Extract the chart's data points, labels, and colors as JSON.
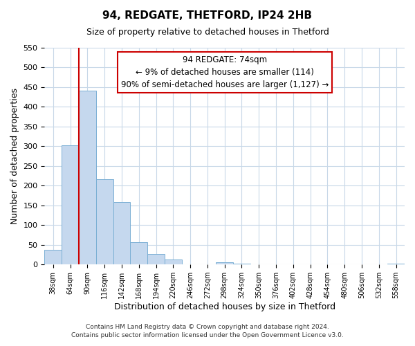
{
  "title": "94, REDGATE, THETFORD, IP24 2HB",
  "subtitle": "Size of property relative to detached houses in Thetford",
  "xlabel": "Distribution of detached houses by size in Thetford",
  "ylabel": "Number of detached properties",
  "bar_labels": [
    "38sqm",
    "64sqm",
    "90sqm",
    "116sqm",
    "142sqm",
    "168sqm",
    "194sqm",
    "220sqm",
    "246sqm",
    "272sqm",
    "298sqm",
    "324sqm",
    "350sqm",
    "376sqm",
    "402sqm",
    "428sqm",
    "454sqm",
    "480sqm",
    "506sqm",
    "532sqm",
    "558sqm"
  ],
  "bar_values": [
    37,
    303,
    441,
    216,
    158,
    57,
    26,
    12,
    0,
    0,
    5,
    3,
    0,
    0,
    0,
    0,
    0,
    0,
    0,
    0,
    2
  ],
  "bar_color": "#c5d8ee",
  "bar_edge_color": "#7aafd4",
  "vline_color": "#cc0000",
  "annotation_text": "94 REDGATE: 74sqm\n← 9% of detached houses are smaller (114)\n90% of semi-detached houses are larger (1,127) →",
  "annotation_box_color": "#ffffff",
  "annotation_box_edge": "#cc0000",
  "ylim": [
    0,
    550
  ],
  "yticks": [
    0,
    50,
    100,
    150,
    200,
    250,
    300,
    350,
    400,
    450,
    500,
    550
  ],
  "footnote1": "Contains HM Land Registry data © Crown copyright and database right 2024.",
  "footnote2": "Contains public sector information licensed under the Open Government Licence v3.0.",
  "bg_color": "#ffffff",
  "grid_color": "#c8d8e8"
}
